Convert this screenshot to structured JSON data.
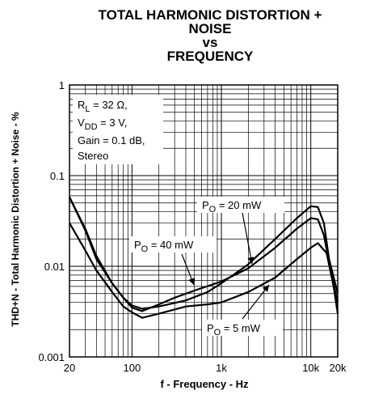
{
  "chart_data": {
    "type": "line",
    "title_lines": [
      "TOTAL HARMONIC DISTORTION +",
      "NOISE",
      "vs",
      "FREQUENCY"
    ],
    "xlabel": "f - Frequency - Hz",
    "ylabel": "THD+N - Total Harmonic Distortion + Noise - %",
    "xscale": "log",
    "yscale": "log",
    "xlim": [
      20,
      20000
    ],
    "ylim": [
      0.001,
      1
    ],
    "x_ticks": [
      {
        "value": 20,
        "label": "20"
      },
      {
        "value": 100,
        "label": "100"
      },
      {
        "value": 1000,
        "label": "1k"
      },
      {
        "value": 10000,
        "label": "10k"
      },
      {
        "value": 20000,
        "label": "20k"
      }
    ],
    "y_ticks": [
      {
        "value": 0.001,
        "label": "0.001"
      },
      {
        "value": 0.01,
        "label": "0.01"
      },
      {
        "value": 0.1,
        "label": "0.1"
      },
      {
        "value": 1,
        "label": "1"
      }
    ],
    "grid": true,
    "conditions": {
      "line1_pre": "R",
      "line1_sub": "L",
      "line1_post": " = 32 Ω,",
      "line2_pre": "V",
      "line2_sub": "DD",
      "line2_post": " = 3 V,",
      "line3": "Gain = 0.1 dB,",
      "line4": "Stereo"
    },
    "series": [
      {
        "label_pre": "P",
        "label_sub": "O",
        "label_post": " = 20 mW",
        "points": [
          [
            20,
            0.058
          ],
          [
            30,
            0.025
          ],
          [
            40,
            0.012
          ],
          [
            60,
            0.0065
          ],
          [
            80,
            0.0045
          ],
          [
            100,
            0.0037
          ],
          [
            130,
            0.0034
          ],
          [
            200,
            0.0036
          ],
          [
            400,
            0.0042
          ],
          [
            700,
            0.0052
          ],
          [
            1000,
            0.0065
          ],
          [
            2000,
            0.0105
          ],
          [
            4000,
            0.02
          ],
          [
            7000,
            0.034
          ],
          [
            10000,
            0.046
          ],
          [
            12000,
            0.045
          ],
          [
            14000,
            0.03
          ],
          [
            16000,
            0.012
          ],
          [
            20000,
            0.005
          ]
        ]
      },
      {
        "label_pre": "P",
        "label_sub": "O",
        "label_post": " = 40 mW",
        "points": [
          [
            20,
            0.058
          ],
          [
            30,
            0.026
          ],
          [
            40,
            0.013
          ],
          [
            60,
            0.0065
          ],
          [
            80,
            0.0045
          ],
          [
            100,
            0.0035
          ],
          [
            130,
            0.0032
          ],
          [
            200,
            0.0038
          ],
          [
            300,
            0.0045
          ],
          [
            500,
            0.0054
          ],
          [
            1000,
            0.0068
          ],
          [
            2000,
            0.0095
          ],
          [
            4000,
            0.016
          ],
          [
            7000,
            0.026
          ],
          [
            10000,
            0.034
          ],
          [
            12000,
            0.033
          ],
          [
            14000,
            0.022
          ],
          [
            17000,
            0.008
          ],
          [
            20000,
            0.004
          ]
        ]
      },
      {
        "label_pre": "P",
        "label_sub": "O",
        "label_post": " = 5 mW",
        "points": [
          [
            20,
            0.03
          ],
          [
            30,
            0.015
          ],
          [
            40,
            0.009
          ],
          [
            60,
            0.0052
          ],
          [
            80,
            0.0036
          ],
          [
            100,
            0.0031
          ],
          [
            130,
            0.0027
          ],
          [
            200,
            0.003
          ],
          [
            400,
            0.0036
          ],
          [
            700,
            0.0038
          ],
          [
            1000,
            0.004
          ],
          [
            2000,
            0.0052
          ],
          [
            4000,
            0.0075
          ],
          [
            7000,
            0.012
          ],
          [
            10000,
            0.016
          ],
          [
            12000,
            0.018
          ],
          [
            15000,
            0.014
          ],
          [
            18000,
            0.006
          ],
          [
            20000,
            0.003
          ]
        ]
      }
    ]
  }
}
